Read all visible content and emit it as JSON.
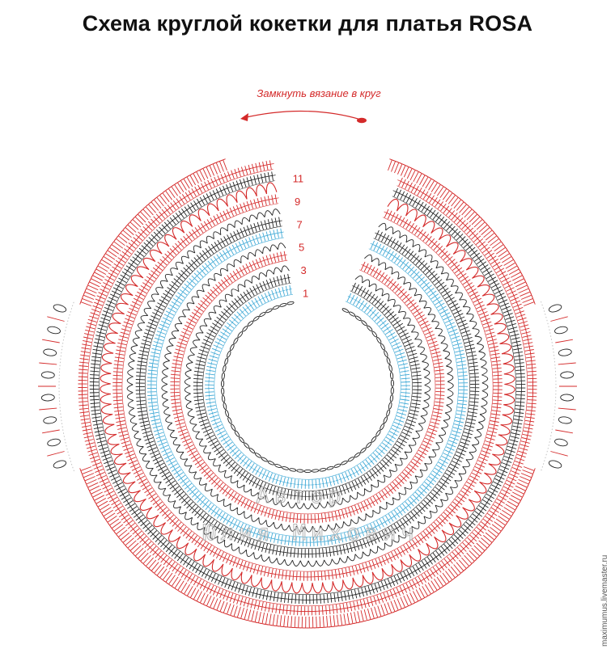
{
  "title": "Схема круглой кокетки для платья ROSA",
  "close_instruction": "Замкнуть вязание в круг",
  "row_numbers": [
    "1",
    "3",
    "5",
    "7",
    "9",
    "11"
  ],
  "watermark": {
    "line1": "Автор",
    "line2": "Юлия Михович"
  },
  "site_credit": "maximumus.livemaster.ru",
  "colors": {
    "red": "#d42a2a",
    "black": "#222222",
    "blue": "#3fa9d6",
    "light_gray": "#bdbdbd"
  },
  "rows": [
    {
      "type": "chain-ring",
      "color": "black"
    },
    {
      "type": "stitches",
      "color": "blue"
    },
    {
      "type": "stitches",
      "color": "black"
    },
    {
      "type": "arcs",
      "color": "black"
    },
    {
      "type": "stitches",
      "color": "red"
    },
    {
      "type": "arcs",
      "color": "black"
    },
    {
      "type": "stitches",
      "color": "blue"
    },
    {
      "type": "stitches",
      "color": "black"
    },
    {
      "type": "arcs",
      "color": "black"
    },
    {
      "type": "stitches",
      "color": "red"
    },
    {
      "type": "shells",
      "color": "red"
    },
    {
      "type": "stitches",
      "color": "black"
    },
    {
      "type": "stitches",
      "color": "red"
    }
  ]
}
